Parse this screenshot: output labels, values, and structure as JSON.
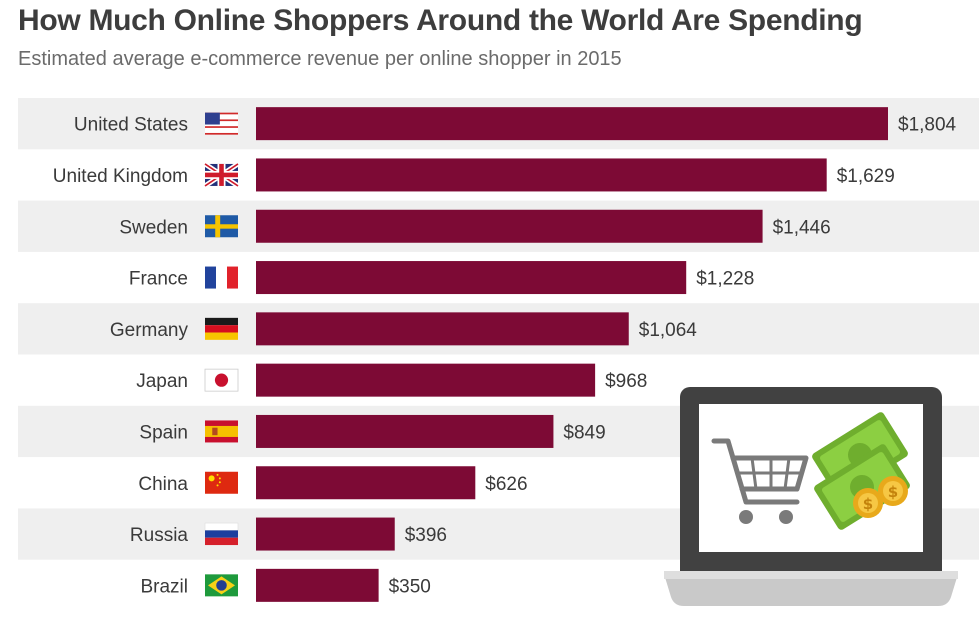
{
  "header": {
    "title": "How Much Online Shoppers Around the World Are Spending",
    "subtitle": "Estimated average e-commerce revenue per online shopper in 2015"
  },
  "colors": {
    "bar": "#7d0a35",
    "stripe": "#efefef",
    "text": "#3a3a3a"
  },
  "chart_data": {
    "type": "bar",
    "orientation": "horizontal",
    "title": "How Much Online Shoppers Around the World Are Spending",
    "subtitle": "Estimated average e-commerce revenue per online shopper in 2015",
    "xlabel": "",
    "ylabel": "",
    "xlim": [
      0,
      1804
    ],
    "grid": false,
    "legend": "none",
    "categories": [
      "United States",
      "United Kingdom",
      "Sweden",
      "France",
      "Germany",
      "Japan",
      "Spain",
      "China",
      "Russia",
      "Brazil"
    ],
    "flags": [
      "us-flag-icon",
      "uk-flag-icon",
      "sweden-flag-icon",
      "france-flag-icon",
      "germany-flag-icon",
      "japan-flag-icon",
      "spain-flag-icon",
      "china-flag-icon",
      "russia-flag-icon",
      "brazil-flag-icon"
    ],
    "values": [
      1804,
      1629,
      1446,
      1228,
      1064,
      968,
      849,
      626,
      396,
      350
    ],
    "value_labels": [
      "$1,804",
      "$1,629",
      "$1,446",
      "$1,228",
      "$1,064",
      "$968",
      "$849",
      "$626",
      "$396",
      "$350"
    ]
  },
  "illustration": {
    "icons": [
      "laptop-icon",
      "shopping-cart-icon",
      "banknotes-icon",
      "coins-icon"
    ]
  }
}
